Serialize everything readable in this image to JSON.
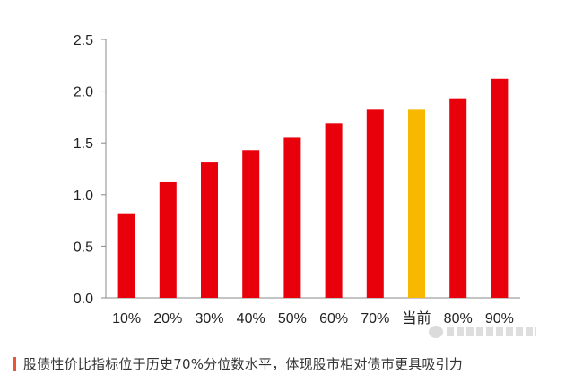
{
  "chart_data": {
    "type": "bar",
    "categories": [
      "10%",
      "20%",
      "30%",
      "40%",
      "50%",
      "60%",
      "70%",
      "当前",
      "80%",
      "90%"
    ],
    "values": [
      0.81,
      1.12,
      1.31,
      1.43,
      1.55,
      1.69,
      1.82,
      1.82,
      1.93,
      2.12
    ],
    "highlight_index": 7,
    "colors": {
      "bar": "#e8000b",
      "highlight": "#f8b800",
      "axis": "#888888"
    },
    "yticks": [
      "0.0",
      "0.5",
      "1.0",
      "1.5",
      "2.0",
      "2.5"
    ],
    "ylim": [
      0,
      2.5
    ],
    "grid": false,
    "legend": "none"
  },
  "caption": "股债性价比指标位于历史70%分位数水平，体现股市相对债市更具吸引力"
}
